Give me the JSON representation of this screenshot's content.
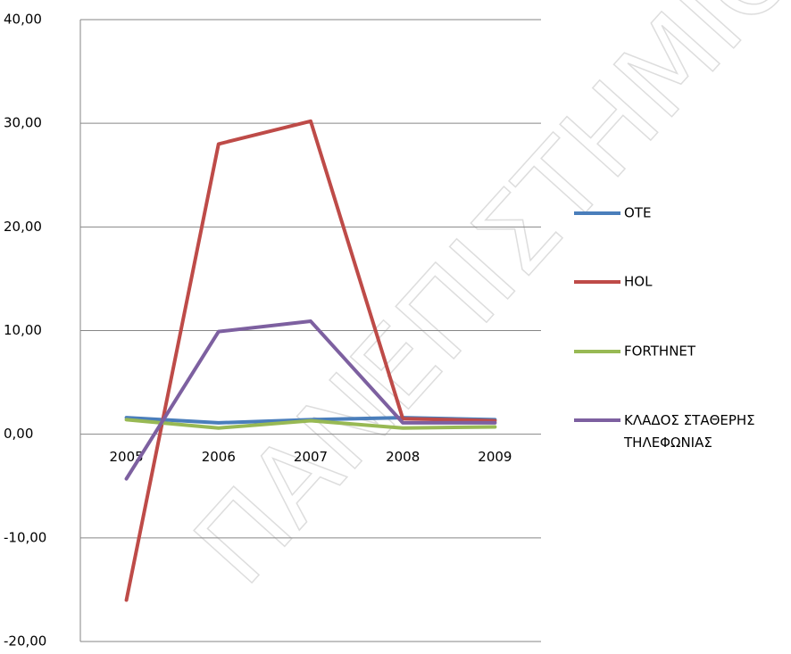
{
  "chart_data": {
    "type": "line",
    "watermark": "ΠΑΝΕΠΙΣΤΗΜΙΟ",
    "categories": [
      "2005",
      "2006",
      "2007",
      "2008",
      "2009"
    ],
    "series": [
      {
        "name": "OTE",
        "color": "#4a7ebb",
        "values": [
          1.6,
          1.1,
          1.4,
          1.6,
          1.4
        ]
      },
      {
        "name": "HOL",
        "color": "#be4b48",
        "values": [
          -16,
          28,
          30.2,
          1.5,
          1.3
        ]
      },
      {
        "name": "FORTHNET",
        "color": "#98b954",
        "values": [
          1.4,
          0.6,
          1.3,
          0.6,
          0.7
        ]
      },
      {
        "name": "ΚΛΑΔΟΣ ΣΤΑΘΕΡΗΣ ΤΗΛΕΦΩΝΙΑΣ",
        "color": "#7d60a0",
        "values": [
          -4.3,
          9.9,
          10.9,
          1.1,
          1.1
        ]
      }
    ],
    "ylim": [
      -20,
      40
    ],
    "yticks": [
      {
        "value": -20,
        "label": "-20,00"
      },
      {
        "value": -10,
        "label": "-10,00"
      },
      {
        "value": 0,
        "label": "0,00"
      },
      {
        "value": 10,
        "label": "10,00"
      },
      {
        "value": 20,
        "label": "20,00"
      },
      {
        "value": 30,
        "label": "30,00"
      },
      {
        "value": 40,
        "label": "40,00"
      }
    ],
    "grid": true,
    "legend": "right"
  }
}
